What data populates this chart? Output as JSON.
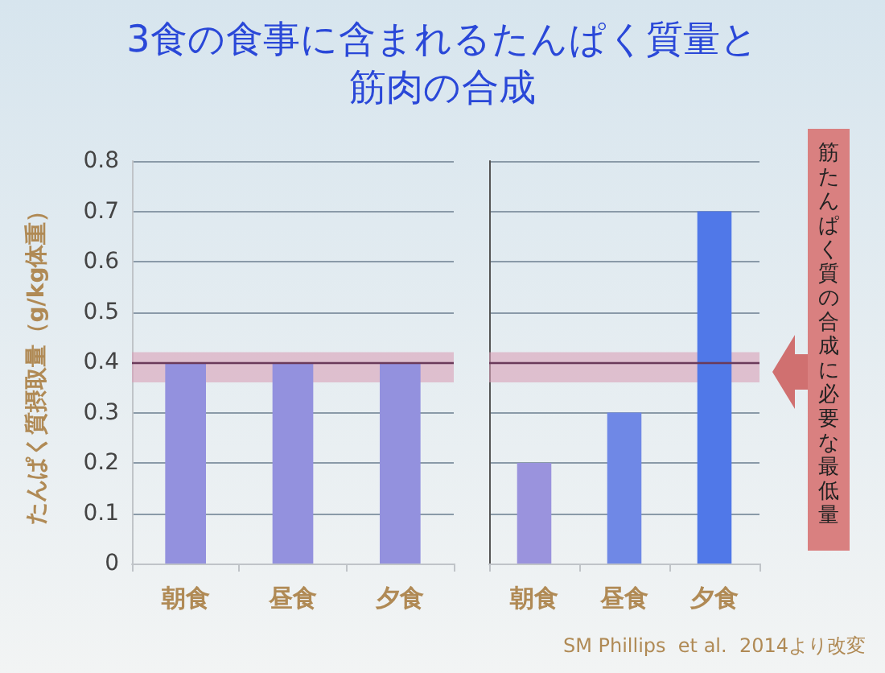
{
  "chart_data": [
    {
      "type": "bar",
      "title": "3食の食事に含まれるたんぱく質量と筋肉の合成",
      "ylabel": "たんぱく質摂取量（g/kg体重）",
      "categories": [
        "朝食",
        "昼食",
        "夕食"
      ],
      "values": [
        0.4,
        0.4,
        0.4
      ],
      "colors": [
        "#9391de",
        "#9391de",
        "#9391de"
      ],
      "ylim": [
        0,
        0.8
      ],
      "yticks": [
        0,
        0.1,
        0.2,
        0.3,
        0.4,
        0.5,
        0.6,
        0.7,
        0.8
      ],
      "grid": "y",
      "ref_lines": [
        {
          "axis": "y",
          "value": 0.4,
          "color": "#6a3a5a"
        }
      ],
      "bands": [
        {
          "axis": "y",
          "from": 0.36,
          "to": 0.42,
          "color": "#d8a0b8"
        }
      ]
    },
    {
      "type": "bar",
      "categories": [
        "朝食",
        "昼食",
        "夕食"
      ],
      "values": [
        0.2,
        0.3,
        0.7
      ],
      "colors": [
        "#9a93dd",
        "#6f88e6",
        "#5078e8"
      ],
      "ylim": [
        0,
        0.8
      ],
      "yticks": [
        0,
        0.1,
        0.2,
        0.3,
        0.4,
        0.5,
        0.6,
        0.7,
        0.8
      ],
      "grid": "y",
      "tick_labels": "x",
      "ref_lines": [
        {
          "axis": "y",
          "value": 0.4,
          "color": "#6a3a5a"
        }
      ],
      "bands": [
        {
          "axis": "y",
          "from": 0.36,
          "to": 0.42,
          "color": "#d8a0b8",
          "label": "筋たんぱく質の合成に必要な最低量"
        }
      ],
      "annotations": [
        "SM Phillips  et al.  2014より改変"
      ]
    }
  ]
}
